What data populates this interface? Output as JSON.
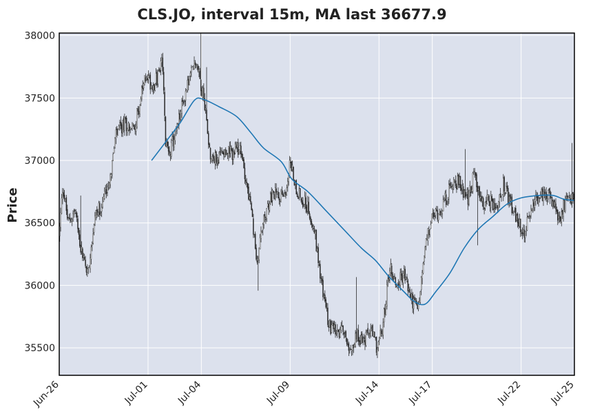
{
  "chart_data": {
    "type": "candlestick",
    "title": "CLS.JO, interval 15m, MA last 36677.9",
    "ylabel": "Price",
    "xlabel": "",
    "ylim": [
      35280,
      38020
    ],
    "yticks": [
      35500,
      36000,
      36500,
      37000,
      37500,
      38000
    ],
    "ytick_labels": [
      "35500",
      "36000",
      "36500",
      "37000",
      "37500",
      "38000"
    ],
    "xlim_days": [
      0,
      29
    ],
    "xtick_labels": [
      "Jun-26",
      "Jul-01",
      "Jul-04",
      "Jul-09",
      "Jul-14",
      "Jul-17",
      "Jul-22",
      "Jul-25"
    ],
    "xtick_days": [
      0,
      5,
      8,
      13,
      18,
      21,
      26,
      29
    ],
    "grid": true,
    "colors": {
      "plot_bg": "#dce1ed",
      "grid": "#ffffff",
      "candle": "#2b2b2b",
      "ma_line": "#1f77b4"
    },
    "price_path": [
      [
        0.0,
        36400
      ],
      [
        0.2,
        36800
      ],
      [
        0.5,
        36500
      ],
      [
        0.9,
        36600
      ],
      [
        1.2,
        36300
      ],
      [
        1.6,
        36100
      ],
      [
        2.0,
        36550
      ],
      [
        2.4,
        36650
      ],
      [
        2.9,
        36900
      ],
      [
        3.2,
        37200
      ],
      [
        3.7,
        37300
      ],
      [
        4.2,
        37250
      ],
      [
        4.6,
        37500
      ],
      [
        4.9,
        37700
      ],
      [
        5.2,
        37600
      ],
      [
        5.5,
        37650
      ],
      [
        5.8,
        37800
      ],
      [
        6.0,
        37100
      ],
      [
        6.3,
        37100
      ],
      [
        6.7,
        37300
      ],
      [
        7.2,
        37600
      ],
      [
        7.7,
        37800
      ],
      [
        8.2,
        37450
      ],
      [
        8.5,
        37050
      ],
      [
        8.9,
        37000
      ],
      [
        9.3,
        37100
      ],
      [
        9.7,
        37050
      ],
      [
        10.1,
        37100
      ],
      [
        10.4,
        36950
      ],
      [
        10.8,
        36600
      ],
      [
        11.1,
        36200
      ],
      [
        11.5,
        36500
      ],
      [
        11.9,
        36700
      ],
      [
        12.3,
        36750
      ],
      [
        12.7,
        36700
      ],
      [
        13.0,
        37000
      ],
      [
        13.3,
        36800
      ],
      [
        13.6,
        36700
      ],
      [
        13.9,
        36650
      ],
      [
        14.3,
        36500
      ],
      [
        14.6,
        36200
      ],
      [
        15.0,
        35800
      ],
      [
        15.3,
        35650
      ],
      [
        15.7,
        35600
      ],
      [
        16.0,
        35650
      ],
      [
        16.4,
        35500
      ],
      [
        16.8,
        35600
      ],
      [
        17.2,
        35550
      ],
      [
        17.5,
        35650
      ],
      [
        17.9,
        35500
      ],
      [
        18.2,
        35650
      ],
      [
        18.6,
        36150
      ],
      [
        19.0,
        36000
      ],
      [
        19.4,
        36100
      ],
      [
        19.8,
        35900
      ],
      [
        20.2,
        35800
      ],
      [
        20.6,
        36300
      ],
      [
        21.0,
        36550
      ],
      [
        21.4,
        36600
      ],
      [
        21.8,
        36700
      ],
      [
        22.2,
        36850
      ],
      [
        22.6,
        36800
      ],
      [
        23.0,
        36700
      ],
      [
        23.4,
        36900
      ],
      [
        23.8,
        36650
      ],
      [
        24.2,
        36700
      ],
      [
        24.6,
        36600
      ],
      [
        25.0,
        36800
      ],
      [
        25.4,
        36650
      ],
      [
        25.8,
        36500
      ],
      [
        26.2,
        36400
      ],
      [
        26.6,
        36650
      ],
      [
        27.0,
        36700
      ],
      [
        27.4,
        36750
      ],
      [
        27.8,
        36650
      ],
      [
        28.2,
        36500
      ],
      [
        28.5,
        36700
      ],
      [
        28.8,
        36700
      ],
      [
        29.0,
        36650
      ]
    ],
    "ma_path": [
      [
        5.2,
        37000
      ],
      [
        6.0,
        37150
      ],
      [
        6.8,
        37300
      ],
      [
        7.6,
        37480
      ],
      [
        8.1,
        37490
      ],
      [
        9.0,
        37430
      ],
      [
        10.0,
        37350
      ],
      [
        10.8,
        37220
      ],
      [
        11.5,
        37100
      ],
      [
        12.5,
        36990
      ],
      [
        13.1,
        36850
      ],
      [
        14.0,
        36750
      ],
      [
        15.0,
        36600
      ],
      [
        16.0,
        36450
      ],
      [
        17.0,
        36300
      ],
      [
        17.8,
        36200
      ],
      [
        18.5,
        36080
      ],
      [
        19.4,
        35950
      ],
      [
        20.0,
        35870
      ],
      [
        20.6,
        35850
      ],
      [
        21.2,
        35950
      ],
      [
        22.0,
        36100
      ],
      [
        22.8,
        36300
      ],
      [
        23.6,
        36450
      ],
      [
        24.4,
        36550
      ],
      [
        25.2,
        36650
      ],
      [
        26.0,
        36700
      ],
      [
        27.0,
        36720
      ],
      [
        27.8,
        36720
      ],
      [
        28.4,
        36690
      ],
      [
        29.0,
        36680
      ]
    ]
  }
}
